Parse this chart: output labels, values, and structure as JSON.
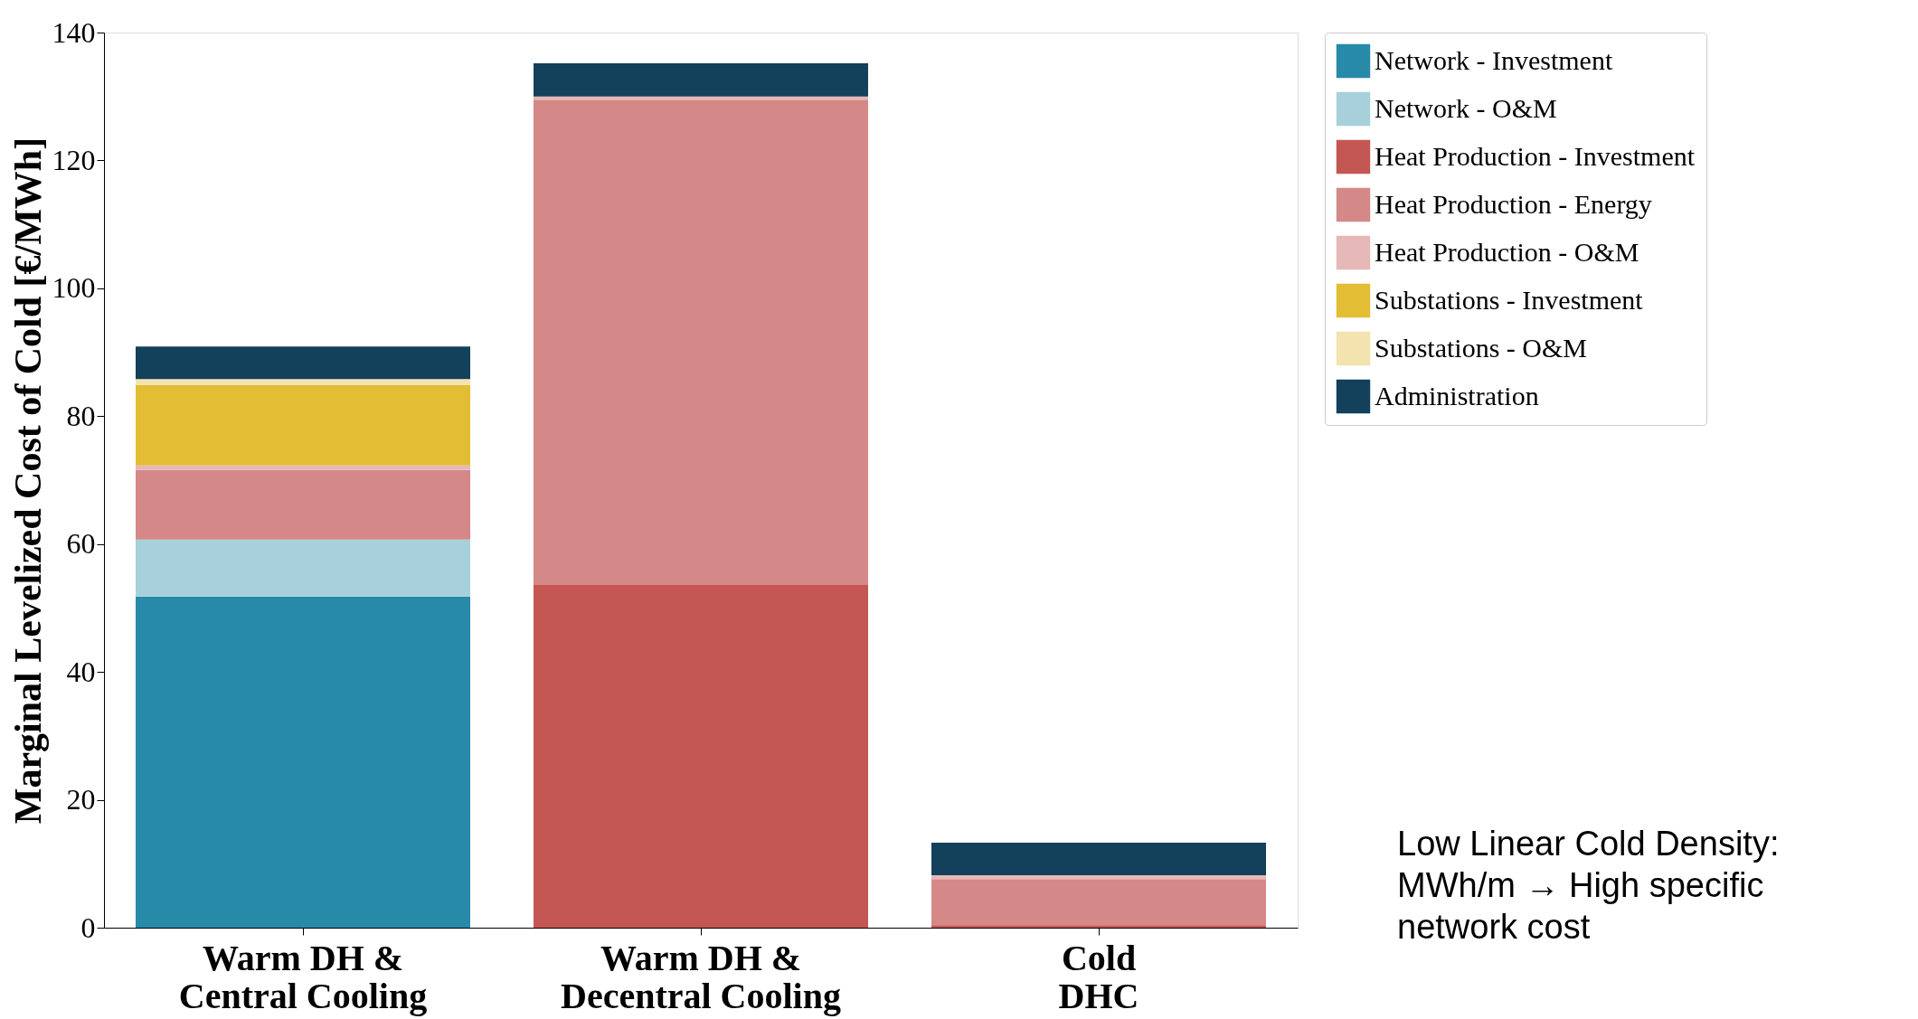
{
  "chart_data": {
    "type": "bar",
    "stacked": true,
    "ylabel": "Marginal Levelized Cost of Cold [€/MWh]",
    "categories": [
      "Warm DH &\nCentral Cooling",
      "Warm DH &\nDecentral Cooling",
      "Cold\nDHC"
    ],
    "ylim": [
      0,
      140
    ],
    "yticks": [
      0,
      20,
      40,
      60,
      80,
      100,
      120,
      140
    ],
    "grid": false,
    "legend": "right",
    "series": [
      {
        "name": "Network - Investment",
        "color": "#268aa8",
        "values": [
          51.8,
          null,
          null
        ]
      },
      {
        "name": "Network - O&M",
        "color": "#a8d0da",
        "values": [
          8.9,
          null,
          null
        ]
      },
      {
        "name": "Heat Production - Investment",
        "color": "#c45653",
        "values": [
          null,
          53.6,
          0.4
        ]
      },
      {
        "name": "Heat Production - Energy",
        "color": "#d48887",
        "values": [
          10.9,
          75.9,
          7.2
        ]
      },
      {
        "name": "Heat Production - O&M",
        "color": "#e6b8b8",
        "values": [
          0.7,
          0.5,
          0.6
        ]
      },
      {
        "name": "Substations - Investment",
        "color": "#e3bd33",
        "values": [
          12.6,
          null,
          null
        ]
      },
      {
        "name": "Substations - O&M",
        "color": "#f3e3ae",
        "values": [
          0.9,
          null,
          null
        ]
      },
      {
        "name": "Administration",
        "color": "#13405a",
        "values": [
          5.1,
          5.2,
          5.1
        ]
      }
    ],
    "annotations": [
      "Low Linear Cold Density:\nMWh/m → High specific\nnetwork cost"
    ]
  }
}
